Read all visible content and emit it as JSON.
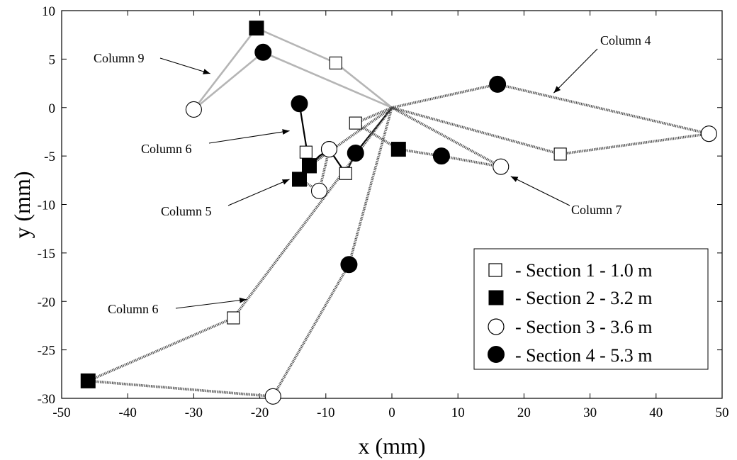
{
  "chart_data": {
    "type": "line",
    "xlabel": "x (mm)",
    "ylabel": "y (mm)",
    "xlim": [
      -50,
      50
    ],
    "ylim": [
      -30,
      10
    ],
    "xticks": [
      -50,
      -40,
      -30,
      -20,
      -10,
      0,
      10,
      20,
      30,
      40,
      50
    ],
    "yticks": [
      10,
      5,
      0,
      -5,
      -10,
      -15,
      -20,
      -25,
      -30
    ],
    "grid": false,
    "legend_position": "bottom-right",
    "legend": [
      {
        "marker": "open-square",
        "label": "- Section 1 - 1.0 m"
      },
      {
        "marker": "filled-square",
        "label": "- Section 2 - 3.2 m"
      },
      {
        "marker": "open-circle",
        "label": "- Section 3 - 3.6 m"
      },
      {
        "marker": "filled-circle",
        "label": "- Section 4 - 5.3 m"
      }
    ],
    "series": [
      {
        "style": "light-gray-solid",
        "x": [
          0,
          -8.5,
          -20.5,
          -30,
          -19.5,
          0
        ],
        "y": [
          0,
          4.6,
          8.2,
          -0.2,
          5.7,
          0
        ],
        "markers": [
          "none",
          "open-square",
          "filled-square",
          "open-circle",
          "filled-circle",
          "none"
        ]
      },
      {
        "style": "dotted-dark",
        "x": [
          0,
          16,
          48,
          25.5,
          0
        ],
        "y": [
          0,
          2.4,
          -2.7,
          -4.8,
          0
        ],
        "markers": [
          "none",
          "filled-circle",
          "open-circle",
          "open-square",
          "none"
        ]
      },
      {
        "style": "dotted-dark",
        "x": [
          0,
          -12.5,
          -14,
          -11,
          -9.5,
          -12.5,
          -13
        ],
        "y": [
          0,
          -6,
          -7.4,
          -8.6,
          -4.3,
          -6,
          -4.6
        ],
        "markers": [
          "none",
          "filled-square",
          "filled-square",
          "open-circle",
          "open-circle",
          "filled-square",
          "open-square"
        ]
      },
      {
        "style": "solid-black",
        "x": [
          0,
          -5.5,
          -7,
          -9.5,
          -11,
          -12.5,
          -14
        ],
        "y": [
          0,
          -4.7,
          -6.8,
          -4.3,
          -5,
          -6,
          0.4
        ],
        "markers": [
          "none",
          "filled-circle",
          "open-square",
          "open-circle",
          "none",
          "filled-square",
          "filled-circle"
        ]
      },
      {
        "style": "dotted-dark",
        "x": [
          0,
          -5.5,
          1,
          7.5,
          16.5,
          0
        ],
        "y": [
          0,
          -1.6,
          -4.3,
          -5,
          -6.1,
          0
        ],
        "markers": [
          "none",
          "open-square",
          "filled-square",
          "filled-circle",
          "open-circle",
          "none"
        ]
      },
      {
        "style": "dotted-dark",
        "x": [
          0,
          -24,
          -46,
          -18,
          -6.5,
          0
        ],
        "y": [
          0,
          -21.7,
          -28.2,
          -29.8,
          -16.2,
          0
        ],
        "markers": [
          "none",
          "open-square",
          "filled-square",
          "open-circle",
          "filled-circle",
          "none"
        ]
      }
    ],
    "annotations": [
      {
        "text": "Column 9",
        "point": [
          -27.5,
          3.5
        ]
      },
      {
        "text": "Column 4",
        "point": [
          24.5,
          1.5
        ]
      },
      {
        "text": "Column 6",
        "point": [
          -15.5,
          -2.4
        ]
      },
      {
        "text": "Column 5",
        "point": [
          -15.5,
          -7.4
        ]
      },
      {
        "text": "Column 7",
        "point": [
          18,
          -7.1
        ]
      },
      {
        "text": "Column 6",
        "point": [
          -22,
          -19.8
        ]
      }
    ]
  }
}
